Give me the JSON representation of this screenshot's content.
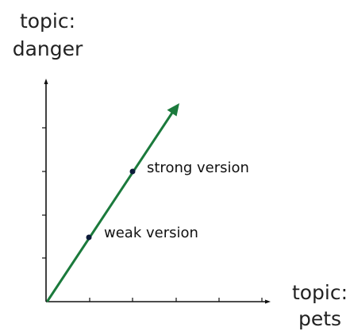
{
  "axes": {
    "y_title_line1": "topic:",
    "y_title_line2": "danger",
    "x_title_line1": "topic:",
    "x_title_line2": "pets"
  },
  "points": {
    "weak_label": "weak version",
    "strong_label": "strong version"
  },
  "colors": {
    "vector": "#1b7a3c",
    "axes": "#111111",
    "points": "#0d1b3a"
  }
}
